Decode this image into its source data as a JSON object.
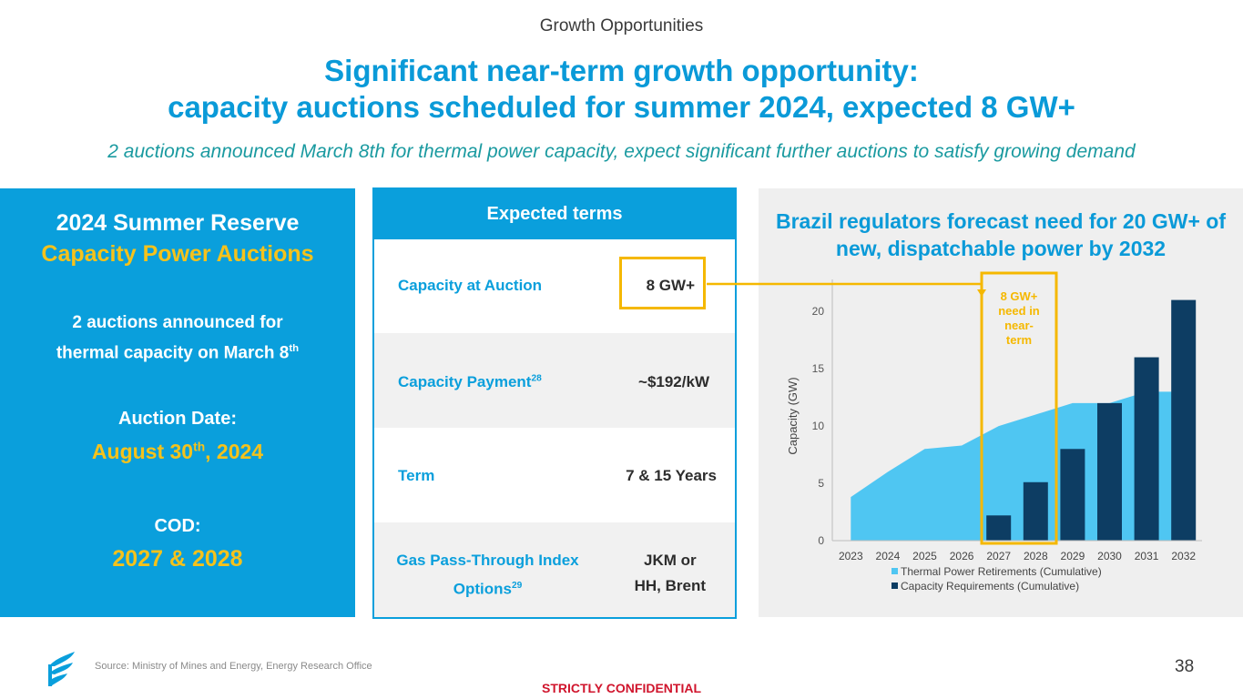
{
  "header": {
    "section": "Growth Opportunities",
    "headline_1": "Significant near-term growth opportunity:",
    "headline_2": "capacity auctions scheduled for summer 2024, expected 8 GW+",
    "subtitle": "2 auctions announced March 8th for thermal power capacity, expect significant further auctions to satisfy growing demand"
  },
  "left_panel": {
    "title_1": "2024 Summer Reserve",
    "title_2": "Capacity Power Auctions",
    "announce_a": "2 auctions announced for",
    "announce_b": "thermal capacity on March 8",
    "announce_sup": "th",
    "auction_label": "Auction Date:",
    "auction_a": "August 30",
    "auction_sup": "th",
    "auction_b": ", 2024",
    "cod_label": "COD:",
    "cod_value": "2027 & 2028"
  },
  "terms": {
    "header": "Expected terms",
    "rows": [
      {
        "label": "Capacity at Auction",
        "sup": "",
        "value_1": "8 GW+",
        "value_2": ""
      },
      {
        "label": "Capacity Payment",
        "sup": "28",
        "value_1": "~$192/kW",
        "value_2": ""
      },
      {
        "label": "Term",
        "sup": "",
        "value_1": "7 & 15 Years",
        "value_2": ""
      },
      {
        "label": "Gas Pass-Through Index",
        "label_2": "Options",
        "sup": "29",
        "value_1": "JKM or",
        "value_2": "HH, Brent"
      }
    ]
  },
  "chart_data": {
    "type": "bar",
    "title": "Brazil regulators forecast need for 20 GW+ of new, dispatchable power by 2032",
    "ylabel": "Capacity (GW)",
    "xlabel": "",
    "ylim": [
      0,
      22
    ],
    "yticks": [
      0,
      5,
      10,
      15,
      20
    ],
    "categories": [
      "2023",
      "2024",
      "2025",
      "2026",
      "2027",
      "2028",
      "2029",
      "2030",
      "2031",
      "2032"
    ],
    "series": [
      {
        "name": "Thermal Power Retirements (Cumulative)",
        "type": "area",
        "color": "#4fc6f2",
        "values": [
          3.8,
          6.0,
          8.0,
          8.3,
          10.0,
          11.0,
          12.0,
          12.0,
          13.0,
          13.0
        ]
      },
      {
        "name": "Capacity Requirements (Cumulative)",
        "type": "bar",
        "color": "#0d3d63",
        "values": [
          0,
          0,
          0,
          0,
          2.2,
          5.1,
          8.0,
          12.0,
          16.0,
          21.0
        ]
      }
    ],
    "annotation": {
      "line_1": "8 GW+",
      "line_2": "need in",
      "line_3": "near-",
      "line_4": "term",
      "color": "#f5b800"
    },
    "legend_position": "bottom"
  },
  "footer": {
    "source": "Source:  Ministry of Mines and Energy, Energy Research Office",
    "page": "38",
    "confidential": "STRICTLY CONFIDENTIAL"
  },
  "colors": {
    "brand_blue": "#0a9fdc",
    "accent_yellow": "#f5c21b",
    "dark_navy": "#0d3d63"
  }
}
